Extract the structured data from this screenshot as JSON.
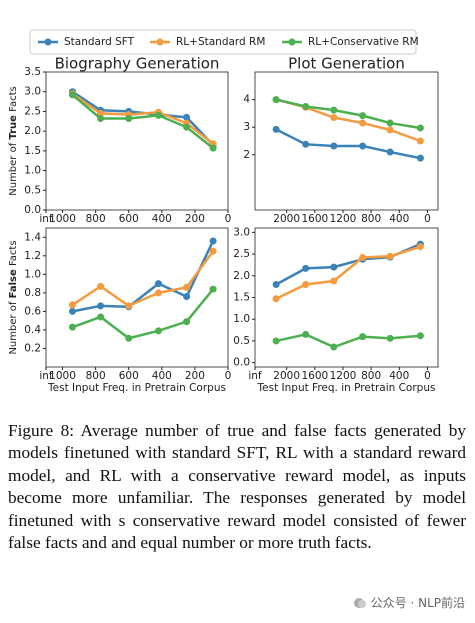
{
  "legend": [
    {
      "name": "Standard SFT",
      "color": "#3b82b8"
    },
    {
      "name": "RL+Standard RM",
      "color": "#f59a3e"
    },
    {
      "name": "RL+Conservative RM",
      "color": "#4caf50"
    }
  ],
  "chart_data": [
    {
      "type": "line",
      "title": "Biography Generation",
      "ylabel": {
        "prefix": "Number of ",
        "bold": "True",
        "suffix": " Facts"
      },
      "x": [
        940,
        770,
        600,
        420,
        250,
        90
      ],
      "xlim": [
        1100,
        0
      ],
      "xticks": [
        {
          "value": 1100,
          "label": "inf"
        },
        1000,
        800,
        600,
        400,
        200,
        0
      ],
      "ylim": [
        0,
        3.5
      ],
      "yticks": [
        {
          "value": 0,
          "label": "0.0"
        },
        0.5,
        {
          "value": 1,
          "label": "1.0"
        },
        1.5,
        {
          "value": 2,
          "label": "2.0"
        },
        2.5,
        {
          "value": 3,
          "label": "3.0"
        },
        3.5
      ],
      "series": [
        {
          "values": [
            3.0,
            2.53,
            2.5,
            2.42,
            2.35,
            1.65
          ]
        },
        {
          "values": [
            2.95,
            2.45,
            2.42,
            2.48,
            2.2,
            1.68
          ]
        },
        {
          "values": [
            2.92,
            2.32,
            2.32,
            2.4,
            2.1,
            1.57
          ]
        }
      ]
    },
    {
      "type": "line",
      "title": "Plot Generation",
      "x": [
        2150,
        1730,
        1330,
        920,
        530,
        100
      ],
      "xlim": [
        2450,
        -150
      ],
      "xticks": [
        2000,
        1600,
        1200,
        800,
        400,
        0
      ],
      "ylim": [
        0,
        5
      ],
      "yticks": [
        2,
        3,
        4
      ],
      "series": [
        {
          "values": [
            2.92,
            2.38,
            2.32,
            2.32,
            2.1,
            1.88
          ]
        },
        {
          "values": [
            4.0,
            3.72,
            3.35,
            3.15,
            2.9,
            2.5
          ]
        },
        {
          "values": [
            4.0,
            3.75,
            3.62,
            3.42,
            3.15,
            2.97
          ]
        }
      ]
    },
    {
      "type": "line",
      "ylabel": {
        "prefix": "Number of ",
        "bold": "False",
        "suffix": " Facts"
      },
      "xlabel": "Test Input Freq. in Pretrain Corpus",
      "x": [
        940,
        770,
        600,
        420,
        250,
        90
      ],
      "xlim": [
        1100,
        0
      ],
      "xticks": [
        {
          "value": 1100,
          "label": "inf"
        },
        1000,
        800,
        600,
        400,
        200,
        0
      ],
      "ylim": [
        0,
        1.5
      ],
      "yticks": [
        0.2,
        0.4,
        0.6,
        0.8,
        {
          "value": 1,
          "label": "1.0"
        },
        1.2,
        1.4
      ],
      "series": [
        {
          "values": [
            0.6,
            0.66,
            0.65,
            0.9,
            0.76,
            1.36
          ]
        },
        {
          "values": [
            0.67,
            0.87,
            0.66,
            0.8,
            0.86,
            1.25
          ]
        },
        {
          "values": [
            0.43,
            0.54,
            0.31,
            0.39,
            0.49,
            0.84
          ]
        }
      ]
    },
    {
      "type": "line",
      "xlabel": "Test Input Freq. in Pretrain Corpus",
      "x": [
        2150,
        1730,
        1330,
        920,
        530,
        100
      ],
      "xlim": [
        2450,
        -150
      ],
      "xticks": [
        {
          "value": 2450,
          "label": "inf"
        },
        2000,
        1600,
        1200,
        800,
        400,
        0
      ],
      "ylim": [
        -0.1,
        3.1
      ],
      "yticks": [
        {
          "value": 0,
          "label": "0.0"
        },
        0.5,
        {
          "value": 1,
          "label": "1.0"
        },
        1.5,
        {
          "value": 2,
          "label": "2.0"
        },
        2.5,
        {
          "value": 3,
          "label": "3.0"
        }
      ],
      "series": [
        {
          "values": [
            1.8,
            2.17,
            2.2,
            2.38,
            2.43,
            2.73
          ]
        },
        {
          "values": [
            1.47,
            1.8,
            1.88,
            2.42,
            2.45,
            2.67
          ]
        },
        {
          "values": [
            0.5,
            0.65,
            0.36,
            0.6,
            0.56,
            0.62
          ]
        }
      ]
    }
  ],
  "caption": "Figure 8: Average number of true and false facts generated by models finetuned with standard SFT, RL with a standard reward model, and RL with a conservative reward model, as inputs become more unfamiliar.  The responses generated by model finetuned with s conservative reward model consisted of fewer false facts and and equal number or more truth facts.",
  "watermark": "公众号 · NLP前沿"
}
